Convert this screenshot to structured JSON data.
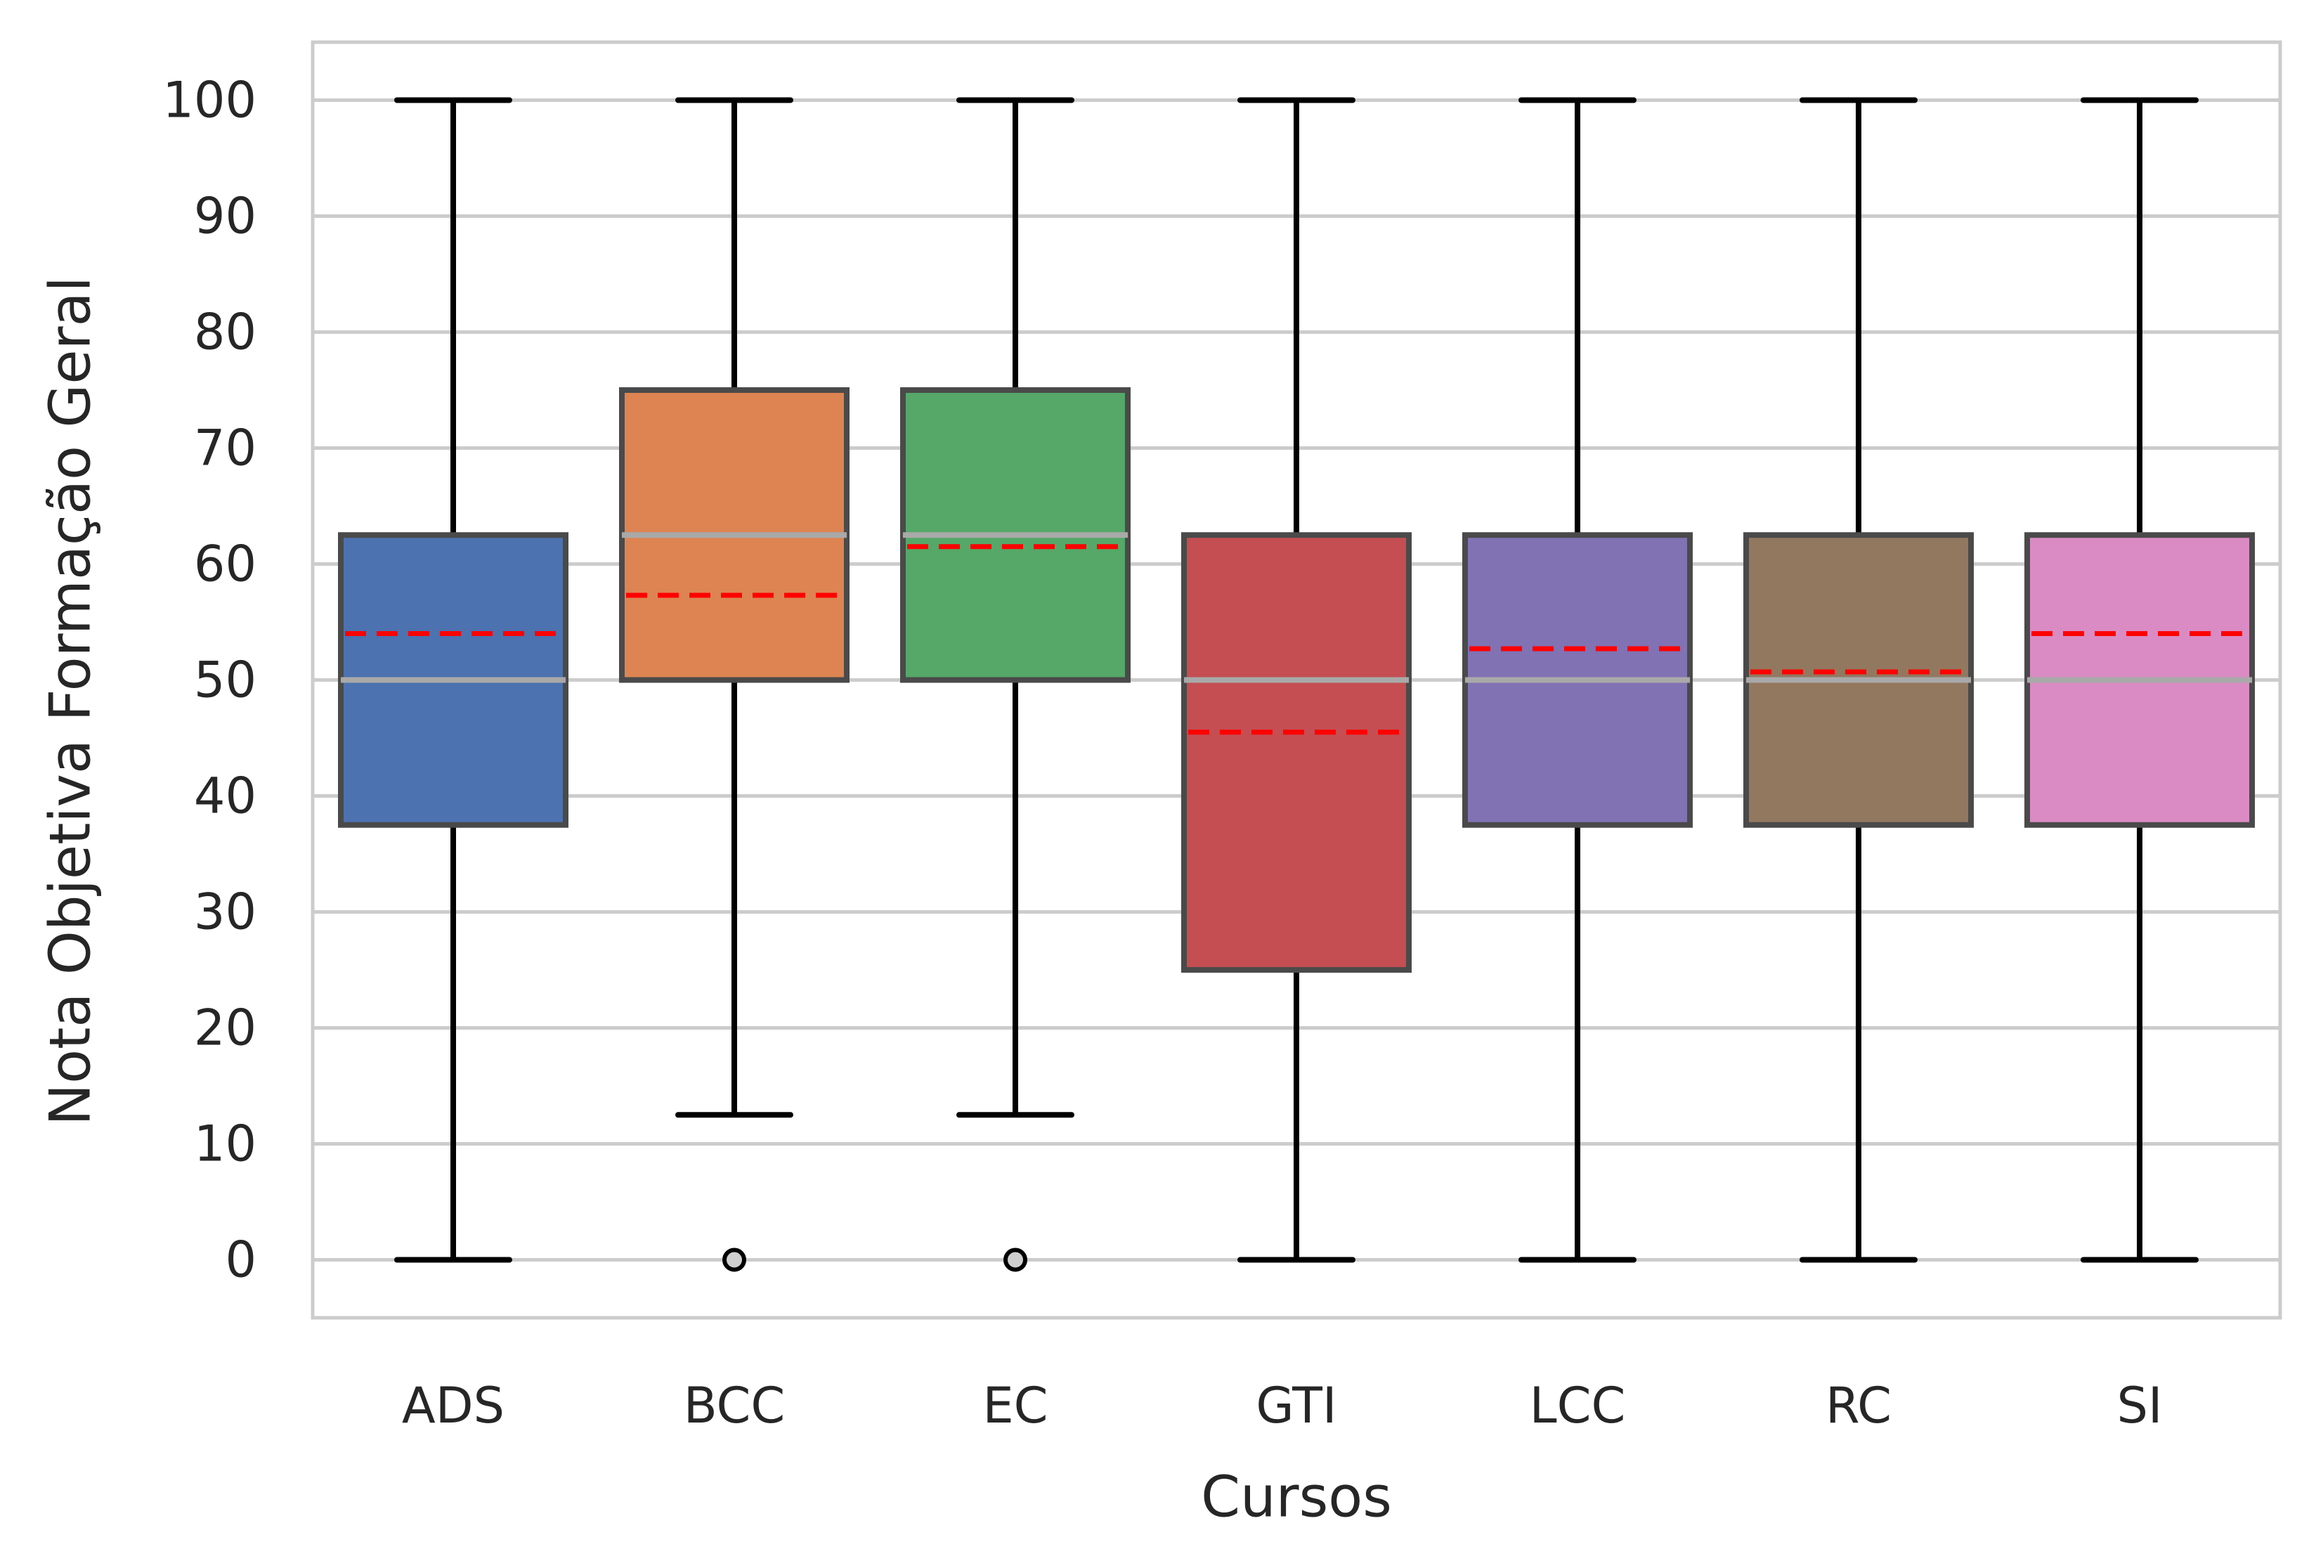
{
  "chart_data": {
    "type": "box",
    "xlabel": "Cursos",
    "ylabel": "Nota Objetiva Formação Geral",
    "ylim": [
      -5,
      105
    ],
    "yticks": [
      0,
      10,
      20,
      30,
      40,
      50,
      60,
      70,
      80,
      90,
      100
    ],
    "grid": "horizontal",
    "median_color": "#a9a9a9",
    "mean_color": "#ff0000",
    "categories": [
      "ADS",
      "BCC",
      "EC",
      "GTI",
      "LCC",
      "RC",
      "SI"
    ],
    "boxes": [
      {
        "label": "ADS",
        "whisker_low": 0,
        "q1": 37.5,
        "median": 50,
        "q3": 62.5,
        "whisker_high": 100,
        "mean": 54.0,
        "outliers": [],
        "color": "#4c72b0"
      },
      {
        "label": "BCC",
        "whisker_low": 12.5,
        "q1": 50,
        "median": 62.5,
        "q3": 75,
        "whisker_high": 100,
        "mean": 57.3,
        "outliers": [
          0
        ],
        "color": "#dd8452"
      },
      {
        "label": "EC",
        "whisker_low": 12.5,
        "q1": 50,
        "median": 62.5,
        "q3": 75,
        "whisker_high": 100,
        "mean": 61.5,
        "outliers": [
          0
        ],
        "color": "#55a868"
      },
      {
        "label": "GTI",
        "whisker_low": 0,
        "q1": 25,
        "median": 50,
        "q3": 62.5,
        "whisker_high": 100,
        "mean": 45.5,
        "outliers": [],
        "color": "#c44e52"
      },
      {
        "label": "LCC",
        "whisker_low": 0,
        "q1": 37.5,
        "median": 50,
        "q3": 62.5,
        "whisker_high": 100,
        "mean": 52.7,
        "outliers": [],
        "color": "#8172b3"
      },
      {
        "label": "RC",
        "whisker_low": 0,
        "q1": 37.5,
        "median": 50,
        "q3": 62.5,
        "whisker_high": 100,
        "mean": 50.7,
        "outliers": [],
        "color": "#937860"
      },
      {
        "label": "SI",
        "whisker_low": 0,
        "q1": 37.5,
        "median": 50,
        "q3": 62.5,
        "whisker_high": 100,
        "mean": 54.0,
        "outliers": [],
        "color": "#da8bc3"
      }
    ]
  }
}
